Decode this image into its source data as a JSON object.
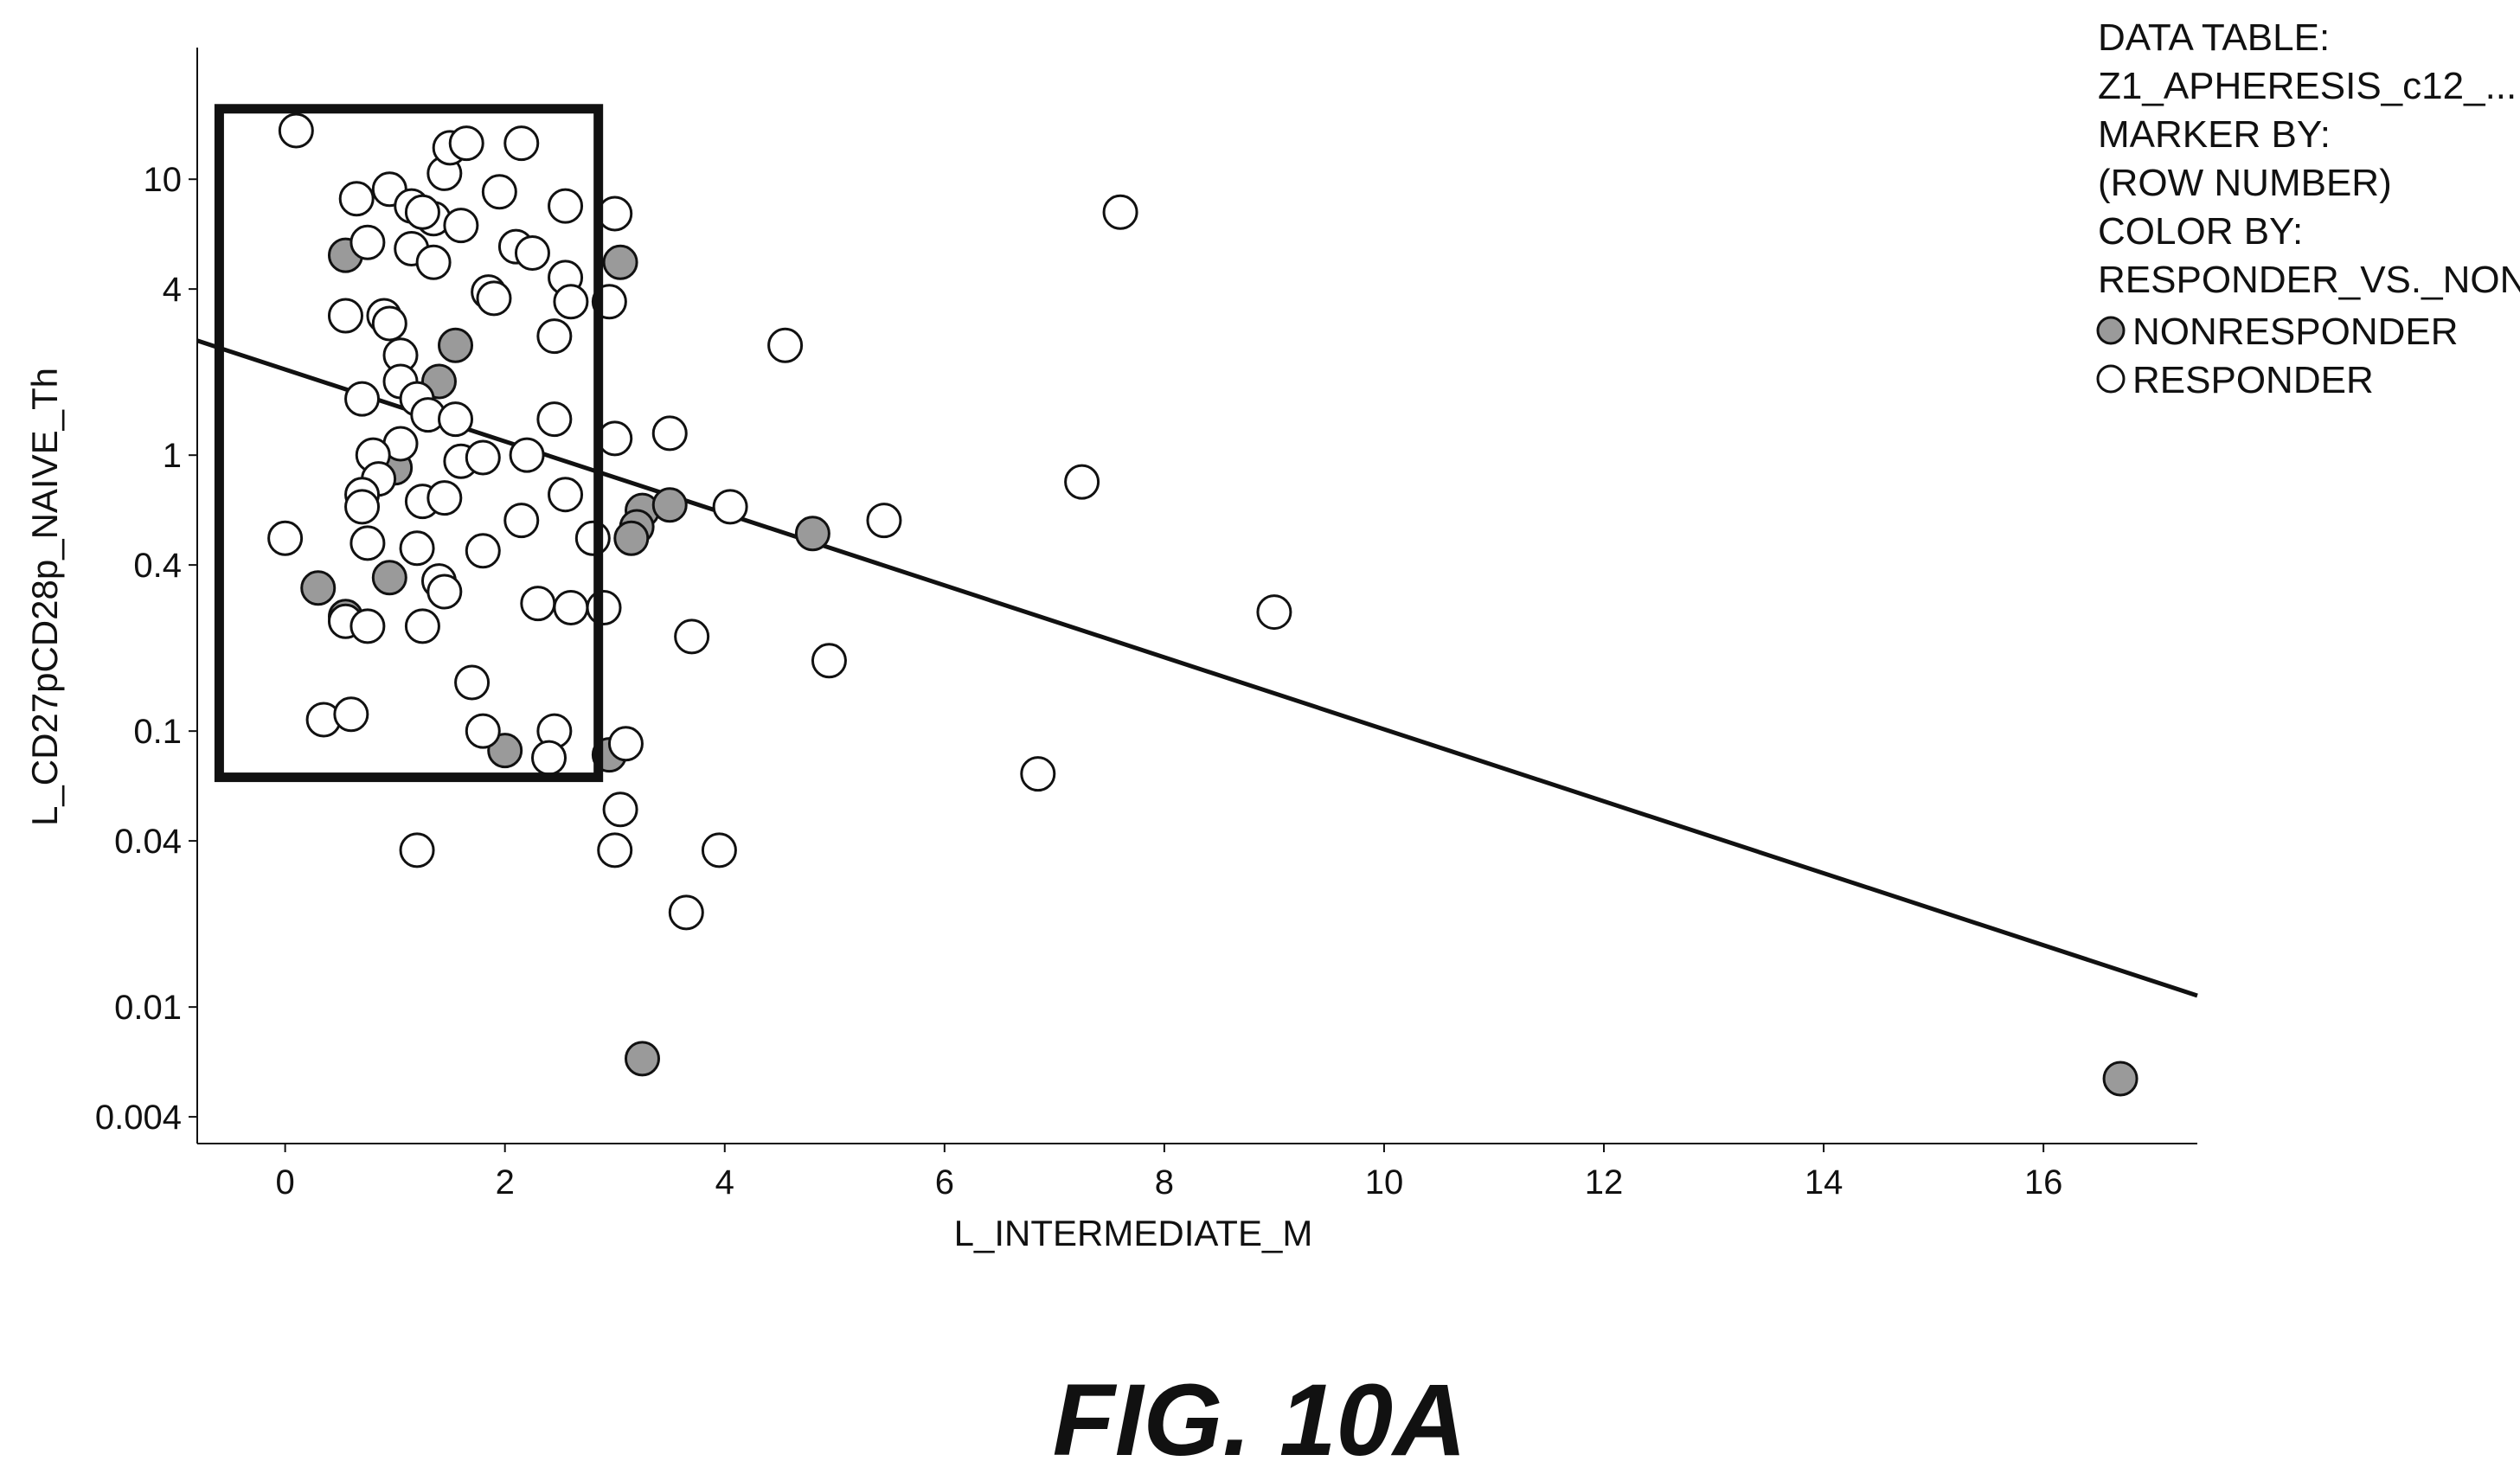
{
  "colors": {
    "responder_fill": "#ffffff",
    "nonresponder_fill": "#9a9a9a",
    "marker_stroke": "#111111",
    "trend_line": "#111111",
    "selection_box": "#111111"
  },
  "legend": {
    "lines": [
      "DATA TABLE:",
      "Z1_APHERESIS_c12_...",
      "MARKER BY:",
      "(ROW NUMBER)",
      "COLOR BY:",
      "RESPONDER_VS._NONRE..."
    ],
    "items": [
      {
        "label": "NONRESPONDER",
        "group": "nonresponder"
      },
      {
        "label": "RESPONDER",
        "group": "responder"
      }
    ]
  },
  "figure_caption": "FIG. 10A",
  "chart_data": {
    "type": "scatter",
    "xlabel": "L_INTERMEDIATE_M",
    "ylabel": "L_CD27pCD28p_NAIVE_Th",
    "xlim": [
      -0.8,
      17.4
    ],
    "ylim": [
      0.0032,
      30
    ],
    "y_scale": "log",
    "x_ticks": [
      0,
      2,
      4,
      6,
      8,
      10,
      12,
      14,
      16
    ],
    "y_ticks": [
      {
        "value": 10,
        "label": "10"
      },
      {
        "value": 4,
        "label": "4"
      },
      {
        "value": 1,
        "label": "1"
      },
      {
        "value": 0.4,
        "label": "0.4"
      },
      {
        "value": 0.1,
        "label": "0.1"
      },
      {
        "value": 0.04,
        "label": "0.04"
      },
      {
        "value": 0.01,
        "label": "0.01"
      },
      {
        "value": 0.004,
        "label": "0.004"
      }
    ],
    "grid": false,
    "legend_position": "top-right",
    "trend_line": {
      "x": [
        -0.8,
        17.4
      ],
      "y": [
        2.6,
        0.011
      ]
    },
    "selection_box": {
      "x": [
        -0.6,
        2.85
      ],
      "y": [
        0.068,
        18
      ]
    },
    "series": [
      {
        "name": "NONRESPONDER",
        "group": "nonresponder",
        "points": [
          [
            0.55,
            5.3
          ],
          [
            1.55,
            2.5
          ],
          [
            1.4,
            1.85
          ],
          [
            1.0,
            0.9
          ],
          [
            0.95,
            0.36
          ],
          [
            0.3,
            0.33
          ],
          [
            0.55,
            0.26
          ],
          [
            2.0,
            0.085
          ],
          [
            2.95,
            0.082
          ],
          [
            3.05,
            5.0
          ],
          [
            3.25,
            0.63
          ],
          [
            3.2,
            0.55
          ],
          [
            3.15,
            0.5
          ],
          [
            3.5,
            0.66
          ],
          [
            4.8,
            0.52
          ],
          [
            3.25,
            0.0065
          ],
          [
            16.7,
            0.0055
          ]
        ]
      },
      {
        "name": "RESPONDER",
        "group": "responder",
        "points": [
          [
            0.1,
            15.0
          ],
          [
            0.65,
            8.5
          ],
          [
            0.95,
            9.2
          ],
          [
            1.15,
            8.0
          ],
          [
            1.35,
            7.2
          ],
          [
            1.25,
            7.6
          ],
          [
            1.45,
            10.5
          ],
          [
            1.5,
            13.0
          ],
          [
            1.65,
            13.5
          ],
          [
            1.95,
            9.0
          ],
          [
            2.15,
            13.5
          ],
          [
            2.55,
            8.0
          ],
          [
            3.0,
            7.5
          ],
          [
            1.6,
            6.8
          ],
          [
            0.75,
            5.9
          ],
          [
            1.15,
            5.6
          ],
          [
            1.35,
            5.0
          ],
          [
            2.1,
            5.7
          ],
          [
            2.25,
            5.4
          ],
          [
            2.55,
            4.4
          ],
          [
            1.85,
            3.9
          ],
          [
            1.9,
            3.7
          ],
          [
            2.6,
            3.6
          ],
          [
            2.95,
            3.6
          ],
          [
            0.55,
            3.2
          ],
          [
            0.9,
            3.2
          ],
          [
            0.95,
            3.0
          ],
          [
            2.45,
            2.7
          ],
          [
            1.05,
            2.3
          ],
          [
            1.05,
            1.85
          ],
          [
            0.7,
            1.6
          ],
          [
            1.2,
            1.6
          ],
          [
            1.3,
            1.4
          ],
          [
            1.55,
            1.35
          ],
          [
            2.45,
            1.35
          ],
          [
            1.05,
            1.1
          ],
          [
            0.8,
            1.0
          ],
          [
            1.6,
            0.95
          ],
          [
            1.8,
            0.98
          ],
          [
            2.2,
            1.0
          ],
          [
            0.85,
            0.82
          ],
          [
            0.7,
            0.72
          ],
          [
            0.7,
            0.65
          ],
          [
            1.25,
            0.68
          ],
          [
            1.45,
            0.7
          ],
          [
            2.55,
            0.72
          ],
          [
            2.15,
            0.58
          ],
          [
            0.0,
            0.5
          ],
          [
            0.75,
            0.48
          ],
          [
            1.2,
            0.46
          ],
          [
            1.8,
            0.45
          ],
          [
            2.8,
            0.5
          ],
          [
            1.4,
            0.35
          ],
          [
            1.45,
            0.32
          ],
          [
            2.3,
            0.29
          ],
          [
            2.6,
            0.28
          ],
          [
            2.9,
            0.28
          ],
          [
            0.55,
            0.25
          ],
          [
            0.75,
            0.24
          ],
          [
            1.25,
            0.24
          ],
          [
            1.7,
            0.15
          ],
          [
            0.35,
            0.11
          ],
          [
            0.6,
            0.115
          ],
          [
            1.8,
            0.1
          ],
          [
            2.45,
            0.1
          ],
          [
            2.4,
            0.08
          ],
          [
            3.1,
            0.09
          ],
          [
            3.0,
            1.15
          ],
          [
            3.5,
            1.2
          ],
          [
            4.55,
            2.5
          ],
          [
            4.05,
            0.65
          ],
          [
            5.45,
            0.58
          ],
          [
            7.25,
            0.8
          ],
          [
            7.6,
            7.6
          ],
          [
            9.0,
            0.27
          ],
          [
            3.7,
            0.22
          ],
          [
            4.95,
            0.18
          ],
          [
            6.85,
            0.07
          ],
          [
            3.05,
            0.052
          ],
          [
            3.0,
            0.037
          ],
          [
            3.95,
            0.037
          ],
          [
            3.65,
            0.022
          ],
          [
            1.2,
            0.037
          ]
        ]
      }
    ]
  }
}
